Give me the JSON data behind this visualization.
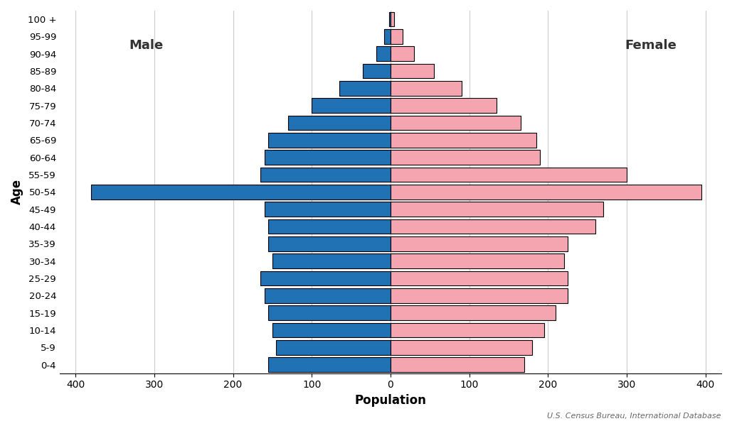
{
  "age_groups": [
    "0-4",
    "5-9",
    "10-14",
    "15-19",
    "20-24",
    "25-29",
    "30-34",
    "35-39",
    "40-44",
    "45-49",
    "50-54",
    "55-59",
    "60-64",
    "65-69",
    "70-74",
    "75-79",
    "80-84",
    "85-89",
    "90-94",
    "95-99",
    "100 +"
  ],
  "male": [
    155,
    145,
    150,
    155,
    160,
    165,
    150,
    155,
    155,
    160,
    380,
    165,
    160,
    155,
    130,
    100,
    65,
    35,
    18,
    8,
    2
  ],
  "female": [
    170,
    180,
    195,
    210,
    225,
    225,
    220,
    225,
    260,
    270,
    395,
    300,
    190,
    185,
    165,
    135,
    90,
    55,
    30,
    15,
    5
  ],
  "male_color": "#2171b5",
  "female_color": "#f4a5b0",
  "edge_color": "#000000",
  "background_color": "#ffffff",
  "xlabel": "Population",
  "ylabel": "Age",
  "male_label": "Male",
  "female_label": "Female",
  "xlim": [
    -420,
    420
  ],
  "xticks": [
    -400,
    -300,
    -200,
    -100,
    0,
    100,
    200,
    300,
    400
  ],
  "xticklabels": [
    "400",
    "300",
    "200",
    "100",
    "0",
    "100",
    "200",
    "300",
    "400"
  ],
  "source_text": "U.S. Census Bureau, International Database",
  "bar_height": 0.85,
  "linewidth": 0.8
}
